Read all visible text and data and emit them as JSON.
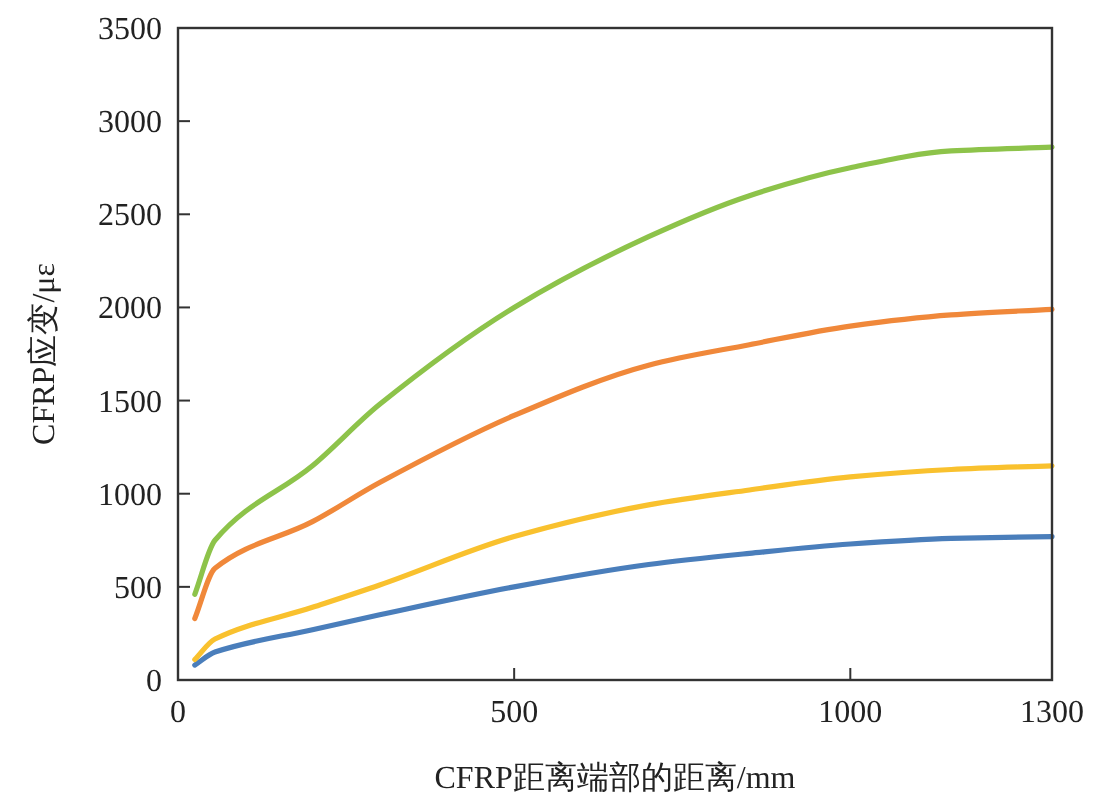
{
  "chart_data": {
    "type": "line",
    "xlabel": "CFRP距离端部的距离/mm",
    "ylabel": "CFRP应变/με",
    "x": [
      25,
      55,
      200,
      300,
      500,
      700,
      850,
      1000,
      1150,
      1300
    ],
    "series": [
      {
        "color": "#4a7ebb",
        "values": [
          80,
          150,
          270,
          350,
          500,
          620,
          680,
          730,
          760,
          770
        ]
      },
      {
        "color": "#f9c12e",
        "values": [
          110,
          220,
          390,
          510,
          770,
          940,
          1020,
          1090,
          1130,
          1150
        ]
      },
      {
        "color": "#f0883a",
        "values": [
          330,
          600,
          850,
          1060,
          1420,
          1690,
          1800,
          1900,
          1960,
          1990
        ]
      },
      {
        "color": "#8dc34a",
        "values": [
          460,
          750,
          1150,
          1480,
          2000,
          2380,
          2600,
          2750,
          2840,
          2860
        ]
      }
    ],
    "xlim": [
      0,
      1300
    ],
    "xticks": [
      0,
      500,
      1000,
      1300
    ],
    "ylim": [
      0,
      3500
    ],
    "yticks": [
      0,
      500,
      1000,
      1500,
      2000,
      2500,
      3000,
      3500
    ],
    "grid": false,
    "marker": "none",
    "line_style": "solid"
  }
}
